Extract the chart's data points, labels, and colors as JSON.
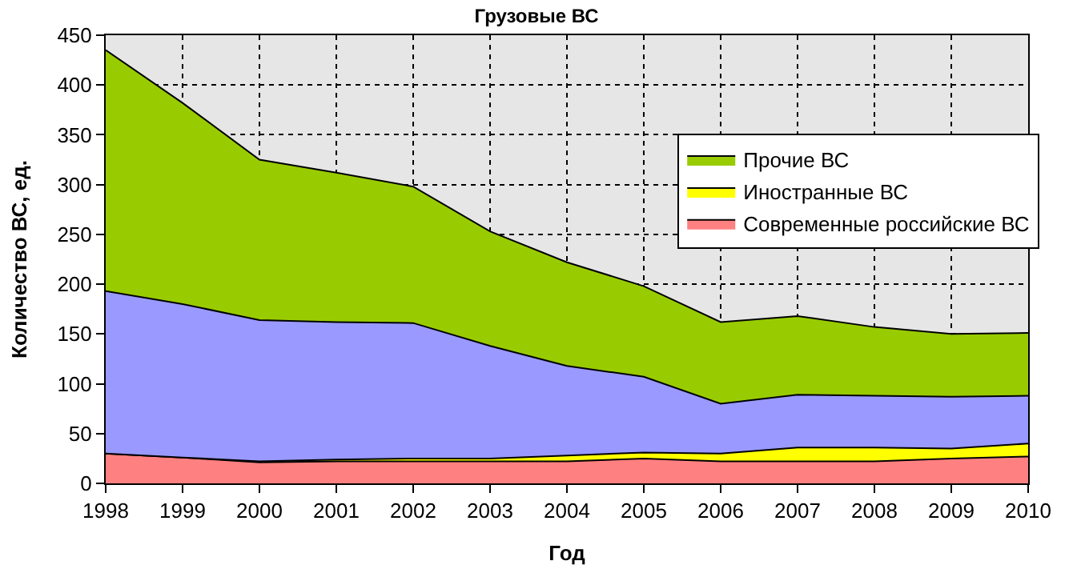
{
  "chart_data": {
    "type": "area",
    "stacked": true,
    "title": "Грузовые ВС",
    "xlabel": "Год",
    "ylabel": "Количество ВС, ед.",
    "x": [
      1998,
      1999,
      2000,
      2001,
      2002,
      2003,
      2004,
      2005,
      2006,
      2007,
      2008,
      2009,
      2010
    ],
    "series": [
      {
        "name": "Современные российские ВС",
        "color": "#ff8080",
        "values": [
          30,
          26,
          21,
          22,
          22,
          22,
          22,
          25,
          22,
          22,
          22,
          25,
          27
        ]
      },
      {
        "name": "Иностранные ВС",
        "color": "#ffff00",
        "values": [
          0,
          0,
          1,
          2,
          3,
          3,
          6,
          6,
          8,
          14,
          14,
          10,
          13
        ]
      },
      {
        "color": "#9999ff",
        "values": [
          163,
          154,
          142,
          138,
          136,
          113,
          90,
          76,
          50,
          53,
          52,
          52,
          48
        ]
      },
      {
        "name": "Прочие ВС",
        "color": "#99cc00",
        "values": [
          242,
          202,
          161,
          150,
          137,
          115,
          104,
          91,
          82,
          79,
          69,
          63,
          63
        ]
      }
    ],
    "xlim": [
      1998,
      2010
    ],
    "xticks": [
      1998,
      1999,
      2000,
      2001,
      2002,
      2003,
      2004,
      2005,
      2006,
      2007,
      2008,
      2009,
      2010
    ],
    "ylim": [
      0,
      450
    ],
    "yticks": [
      0,
      50,
      100,
      150,
      200,
      250,
      300,
      350,
      400,
      450
    ],
    "grid": true,
    "legend": "top right"
  }
}
